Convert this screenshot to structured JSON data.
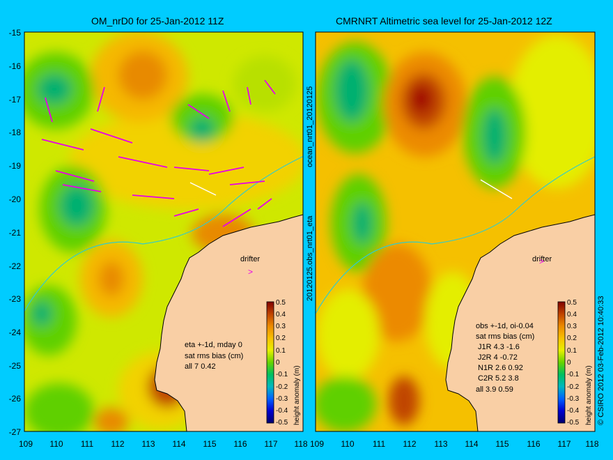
{
  "titles": {
    "left": "OM_nrD0 for 25-Jan-2012 11Z",
    "right": "CMRNRT Altimetric sea level  for 25-Jan-2012 12Z"
  },
  "side_labels": {
    "middle_top": "ocean_nrt01_20120125",
    "middle_bottom": "20120125.obs_nrt01_eta",
    "copyright": "© CSIRO 2012  03-Feb-2012 10:40:33"
  },
  "axes": {
    "y_ticks": [
      "-15",
      "-16",
      "-17",
      "-18",
      "-19",
      "-20",
      "-21",
      "-22",
      "-23",
      "-24",
      "-25",
      "-26",
      "-27"
    ],
    "x_ticks": [
      "109",
      "110",
      "111",
      "112",
      "113",
      "114",
      "115",
      "116",
      "117",
      "118"
    ]
  },
  "colorbar": {
    "label": "height anomaly (m)",
    "ticks": [
      "0.5",
      "0.4",
      "0.3",
      "0.2",
      "0.1",
      "0",
      "-0.1",
      "-0.2",
      "-0.3",
      "-0.4",
      "-0.5"
    ]
  },
  "drifter_label": "drifter",
  "left_stats": {
    "l1": "eta +-1d, mday 0",
    "l2": "sat rms bias (cm)",
    "l3": "all 7 0.42"
  },
  "right_stats": {
    "l1": "obs +-1d, oi-0.04",
    "l2": "sat rms bias (cm)",
    "r1": "J1R   4.3  -1.6",
    "r2": "J2R   4  -0.72",
    "r3": "N1R   2.6  0.92",
    "r4": "C2R   5.2  3.8",
    "r5": "all 3.9  0.59"
  },
  "colors": {
    "background": "#00ccff",
    "land": "#f9cfa5",
    "arrows": "#e800e8"
  }
}
